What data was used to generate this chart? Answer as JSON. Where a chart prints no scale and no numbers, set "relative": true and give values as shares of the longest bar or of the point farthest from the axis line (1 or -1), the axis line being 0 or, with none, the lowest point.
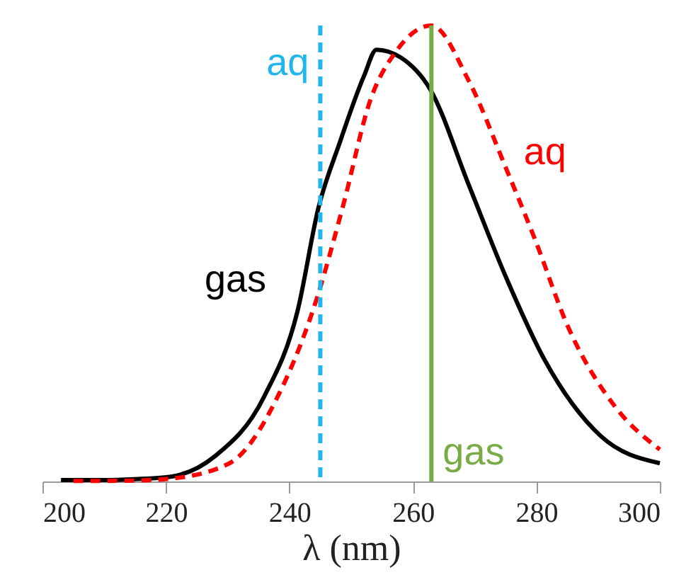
{
  "chart_data": {
    "type": "line",
    "relative": true,
    "xlabel": "λ (nm)",
    "xlim": [
      200,
      300
    ],
    "xticks": [
      200,
      220,
      240,
      260,
      280,
      300
    ],
    "grid": false,
    "series": [
      {
        "name": "gas",
        "color": "#000000",
        "line_style": "solid",
        "x": [
          203,
          210,
          215,
          220.6,
          228,
          235.9,
          241.3,
          244.7,
          248.2,
          252.1,
          254.1,
          258,
          262.8,
          269,
          275.2,
          281.2,
          290.4,
          300
        ],
        "values": [
          0.003,
          0.003,
          0.005,
          0.01,
          0.056,
          0.186,
          0.373,
          0.6,
          0.745,
          0.89,
          0.947,
          0.93,
          0.86,
          0.652,
          0.444,
          0.27,
          0.1,
          0.04
        ]
      },
      {
        "name": "aq",
        "color": "#ff0000",
        "line_style": "dashed",
        "x": [
          205,
          215,
          220.6,
          230.3,
          238.1,
          244.5,
          248.6,
          253.2,
          257.1,
          263,
          269,
          275.2,
          279.8,
          285.1,
          292.7,
          300
        ],
        "values": [
          0.001,
          0.002,
          0.006,
          0.04,
          0.186,
          0.404,
          0.6,
          0.84,
          0.94,
          1,
          0.88,
          0.683,
          0.53,
          0.34,
          0.165,
          0.07
        ]
      }
    ],
    "ref_lines": [
      {
        "axis": "x",
        "value": 245,
        "label": "aq",
        "color": "#1fb6ee",
        "line_style": "dashed"
      },
      {
        "axis": "x",
        "value": 263,
        "label": "gas",
        "color": "#77ac45",
        "line_style": "solid"
      }
    ]
  }
}
